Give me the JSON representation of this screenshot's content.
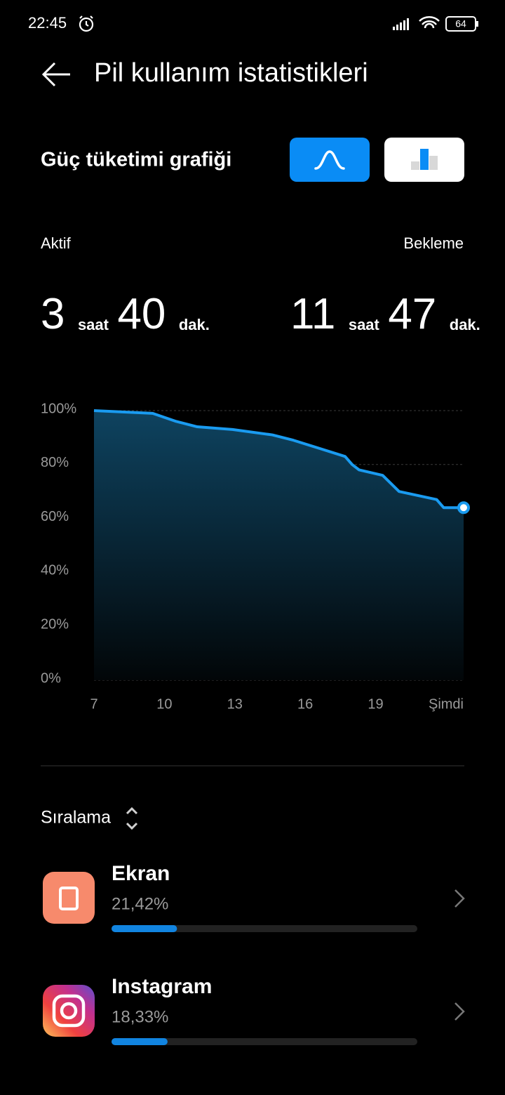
{
  "status_bar": {
    "time": "22:45",
    "battery": "64"
  },
  "header": {
    "title": "Pil kullanım istatistikleri"
  },
  "section_title": "Güç tüketimi grafiği",
  "stats": {
    "active": {
      "label": "Aktif",
      "hours": "3",
      "hours_unit": "saat",
      "minutes": "40",
      "minutes_unit": "dak."
    },
    "standby": {
      "label": "Bekleme",
      "hours": "11",
      "hours_unit": "saat",
      "minutes": "47",
      "minutes_unit": "dak."
    }
  },
  "chart_data": {
    "type": "line",
    "color": "#1a9bf0",
    "grid": true,
    "x": [
      7,
      9.5,
      10.5,
      11.4,
      12.9,
      14.6,
      15.5,
      16.6,
      17.7,
      18,
      18.3,
      19.3,
      20,
      21.6,
      21.9,
      22.75
    ],
    "values": [
      100,
      99,
      96,
      94,
      93,
      91,
      89,
      86,
      83,
      80,
      78,
      76,
      70,
      67,
      64,
      64
    ],
    "xlim": [
      7,
      22.75
    ],
    "xticks": [
      7,
      10,
      13,
      16,
      19,
      {
        "value": 22.75,
        "label": "Şimdi"
      }
    ],
    "ylim": [
      0,
      100
    ],
    "yticks": [
      {
        "value": 0,
        "label": "0%"
      },
      {
        "value": 20,
        "label": "20%"
      },
      {
        "value": 40,
        "label": "40%"
      },
      {
        "value": 60,
        "label": "60%"
      },
      {
        "value": 80,
        "label": "80%"
      },
      {
        "value": 100,
        "label": "100%"
      }
    ]
  },
  "sort_label": "Sıralama",
  "apps": [
    {
      "name": "Ekran",
      "usage": 21.42,
      "usage_label": "21,42%"
    },
    {
      "name": "Instagram",
      "usage": 18.33,
      "usage_label": "18,33%"
    }
  ]
}
